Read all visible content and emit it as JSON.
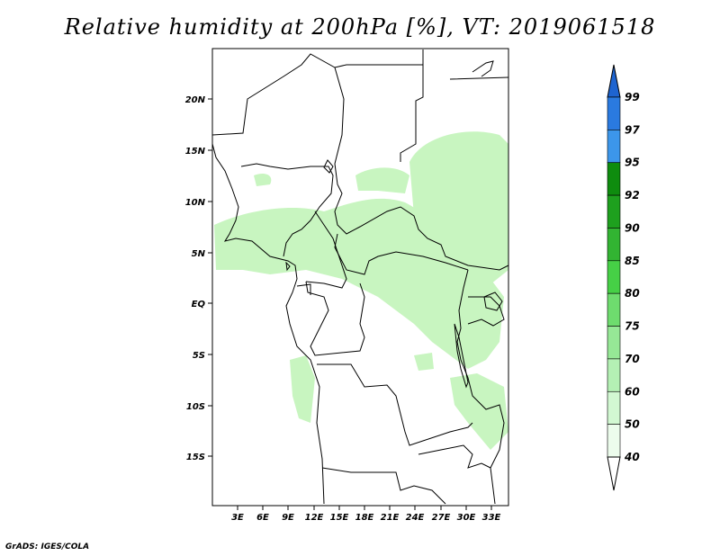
{
  "title": "Relative humidity at 200hPa [%], VT: 2019061518",
  "footer": "GrADS: IGES/COLA",
  "map": {
    "lat_labels": [
      "20N",
      "15N",
      "10N",
      "5N",
      "EQ",
      "5S",
      "10S",
      "15S"
    ],
    "lon_labels": [
      "3E",
      "6E",
      "9E",
      "12E",
      "15E",
      "18E",
      "21E",
      "24E",
      "27E",
      "30E",
      "33E"
    ],
    "field_color_hint": "#c8f5c0"
  },
  "colorbar": {
    "labels": [
      "99",
      "97",
      "95",
      "92",
      "90",
      "85",
      "80",
      "75",
      "70",
      "60",
      "50",
      "40"
    ],
    "colors": [
      "#1e64d0",
      "#2a7ae0",
      "#3c96ea",
      "#0e8c0e",
      "#1ea01e",
      "#32b432",
      "#46d046",
      "#6edc6e",
      "#96e896",
      "#b4f0b4",
      "#d2f8d2",
      "#ecfcec"
    ]
  }
}
